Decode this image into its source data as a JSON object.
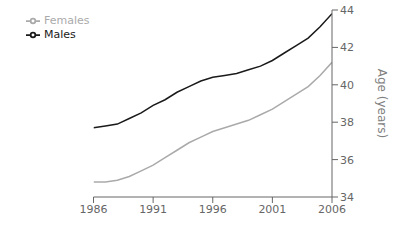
{
  "chart_data": {
    "type": "line",
    "ylabel": "Age (years)",
    "x": [
      1986,
      1987,
      1988,
      1989,
      1990,
      1991,
      1992,
      1993,
      1994,
      1995,
      1996,
      1997,
      1998,
      1999,
      2000,
      2001,
      2002,
      2003,
      2004,
      2005,
      2006
    ],
    "series": [
      {
        "name": "Males",
        "color": "#1a1a1a",
        "values": [
          37.7,
          37.8,
          37.9,
          38.2,
          38.5,
          38.9,
          39.2,
          39.6,
          39.9,
          40.2,
          40.4,
          40.5,
          40.6,
          40.8,
          41.0,
          41.3,
          41.7,
          42.1,
          42.5,
          43.1,
          43.8
        ]
      },
      {
        "name": "Females",
        "color": "#aaaaaa",
        "values": [
          34.8,
          34.8,
          34.9,
          35.1,
          35.4,
          35.7,
          36.1,
          36.5,
          36.9,
          37.2,
          37.5,
          37.7,
          37.9,
          38.1,
          38.4,
          38.7,
          39.1,
          39.5,
          39.9,
          40.5,
          41.2
        ]
      }
    ],
    "xlim": [
      1986,
      2006
    ],
    "xticks": [
      1986,
      1991,
      1996,
      2001,
      2006
    ],
    "ylim": [
      34,
      44
    ],
    "yticks": [
      34,
      36,
      38,
      40,
      42,
      44
    ],
    "grid": false,
    "legend": "upper left"
  }
}
